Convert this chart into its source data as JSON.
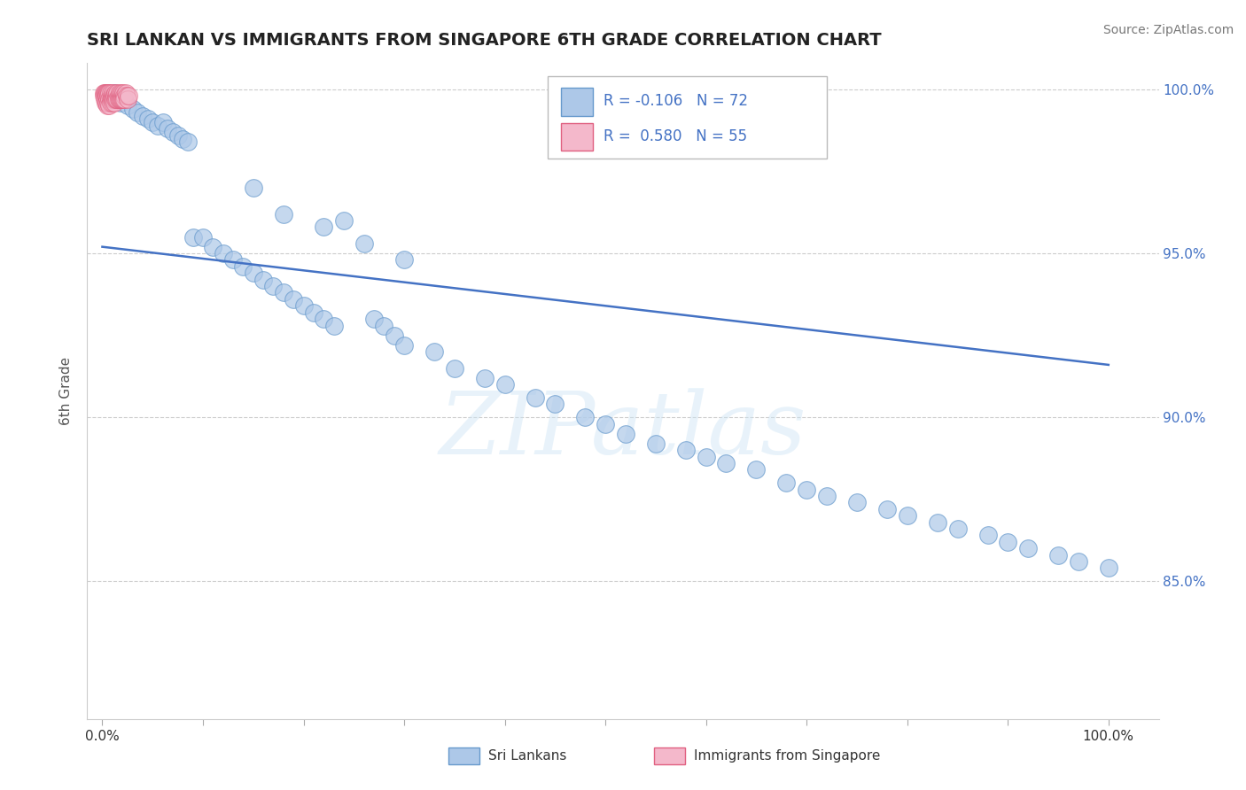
{
  "title": "SRI LANKAN VS IMMIGRANTS FROM SINGAPORE 6TH GRADE CORRELATION CHART",
  "source_text": "Source: ZipAtlas.com",
  "ylabel": "6th Grade",
  "watermark": "ZIPatlas",
  "legend_R_blue": "-0.106",
  "legend_N_blue": "72",
  "legend_R_pink": "0.580",
  "legend_N_pink": "55",
  "blue_color": "#adc8e8",
  "blue_edge_color": "#6699cc",
  "blue_line_color": "#4472c4",
  "pink_color": "#f4b8cb",
  "pink_edge_color": "#e06080",
  "grid_color": "#cccccc",
  "right_tick_color": "#4472c4",
  "title_color": "#222222",
  "source_color": "#777777",
  "ylim_low": 0.808,
  "ylim_high": 1.008,
  "xlim_low": -0.015,
  "xlim_high": 1.05,
  "trend_y_at_0": 0.952,
  "trend_y_at_1": 0.916,
  "blue_x": [
    0.005,
    0.008,
    0.012,
    0.015,
    0.018,
    0.02,
    0.025,
    0.03,
    0.035,
    0.04,
    0.045,
    0.05,
    0.055,
    0.06,
    0.065,
    0.07,
    0.075,
    0.08,
    0.085,
    0.09,
    0.1,
    0.11,
    0.12,
    0.13,
    0.14,
    0.15,
    0.16,
    0.17,
    0.18,
    0.19,
    0.2,
    0.21,
    0.22,
    0.23,
    0.24,
    0.27,
    0.28,
    0.29,
    0.3,
    0.33,
    0.35,
    0.38,
    0.4,
    0.43,
    0.45,
    0.48,
    0.5,
    0.52,
    0.55,
    0.58,
    0.6,
    0.62,
    0.65,
    0.68,
    0.7,
    0.72,
    0.75,
    0.78,
    0.8,
    0.83,
    0.85,
    0.88,
    0.9,
    0.92,
    0.95,
    0.97,
    1.0,
    0.15,
    0.18,
    0.22,
    0.26,
    0.3
  ],
  "blue_y": [
    0.999,
    0.998,
    0.999,
    0.997,
    0.996,
    0.998,
    0.995,
    0.994,
    0.993,
    0.992,
    0.991,
    0.99,
    0.989,
    0.99,
    0.988,
    0.987,
    0.986,
    0.985,
    0.984,
    0.955,
    0.955,
    0.952,
    0.95,
    0.948,
    0.946,
    0.944,
    0.942,
    0.94,
    0.938,
    0.936,
    0.934,
    0.932,
    0.93,
    0.928,
    0.96,
    0.93,
    0.928,
    0.925,
    0.922,
    0.92,
    0.915,
    0.912,
    0.91,
    0.906,
    0.904,
    0.9,
    0.898,
    0.895,
    0.892,
    0.89,
    0.888,
    0.886,
    0.884,
    0.88,
    0.878,
    0.876,
    0.874,
    0.872,
    0.87,
    0.868,
    0.866,
    0.864,
    0.862,
    0.86,
    0.858,
    0.856,
    0.854,
    0.97,
    0.962,
    0.958,
    0.953,
    0.948
  ],
  "pink_x": [
    0.001,
    0.001,
    0.002,
    0.002,
    0.003,
    0.003,
    0.003,
    0.004,
    0.004,
    0.004,
    0.005,
    0.005,
    0.005,
    0.006,
    0.006,
    0.006,
    0.007,
    0.007,
    0.007,
    0.008,
    0.008,
    0.008,
    0.009,
    0.009,
    0.01,
    0.01,
    0.01,
    0.011,
    0.011,
    0.012,
    0.012,
    0.013,
    0.013,
    0.014,
    0.014,
    0.015,
    0.015,
    0.016,
    0.016,
    0.017,
    0.017,
    0.018,
    0.018,
    0.019,
    0.019,
    0.02,
    0.02,
    0.021,
    0.021,
    0.022,
    0.022,
    0.023,
    0.024,
    0.025,
    0.026
  ],
  "pink_y": [
    0.999,
    0.998,
    0.999,
    0.997,
    0.999,
    0.998,
    0.996,
    0.999,
    0.998,
    0.996,
    0.999,
    0.997,
    0.995,
    0.999,
    0.998,
    0.996,
    0.999,
    0.997,
    0.995,
    0.999,
    0.997,
    0.996,
    0.998,
    0.997,
    0.999,
    0.997,
    0.996,
    0.998,
    0.997,
    0.998,
    0.996,
    0.999,
    0.997,
    0.998,
    0.997,
    0.999,
    0.997,
    0.998,
    0.997,
    0.999,
    0.997,
    0.998,
    0.997,
    0.999,
    0.997,
    0.998,
    0.997,
    0.999,
    0.997,
    0.998,
    0.997,
    0.999,
    0.998,
    0.997,
    0.998
  ]
}
